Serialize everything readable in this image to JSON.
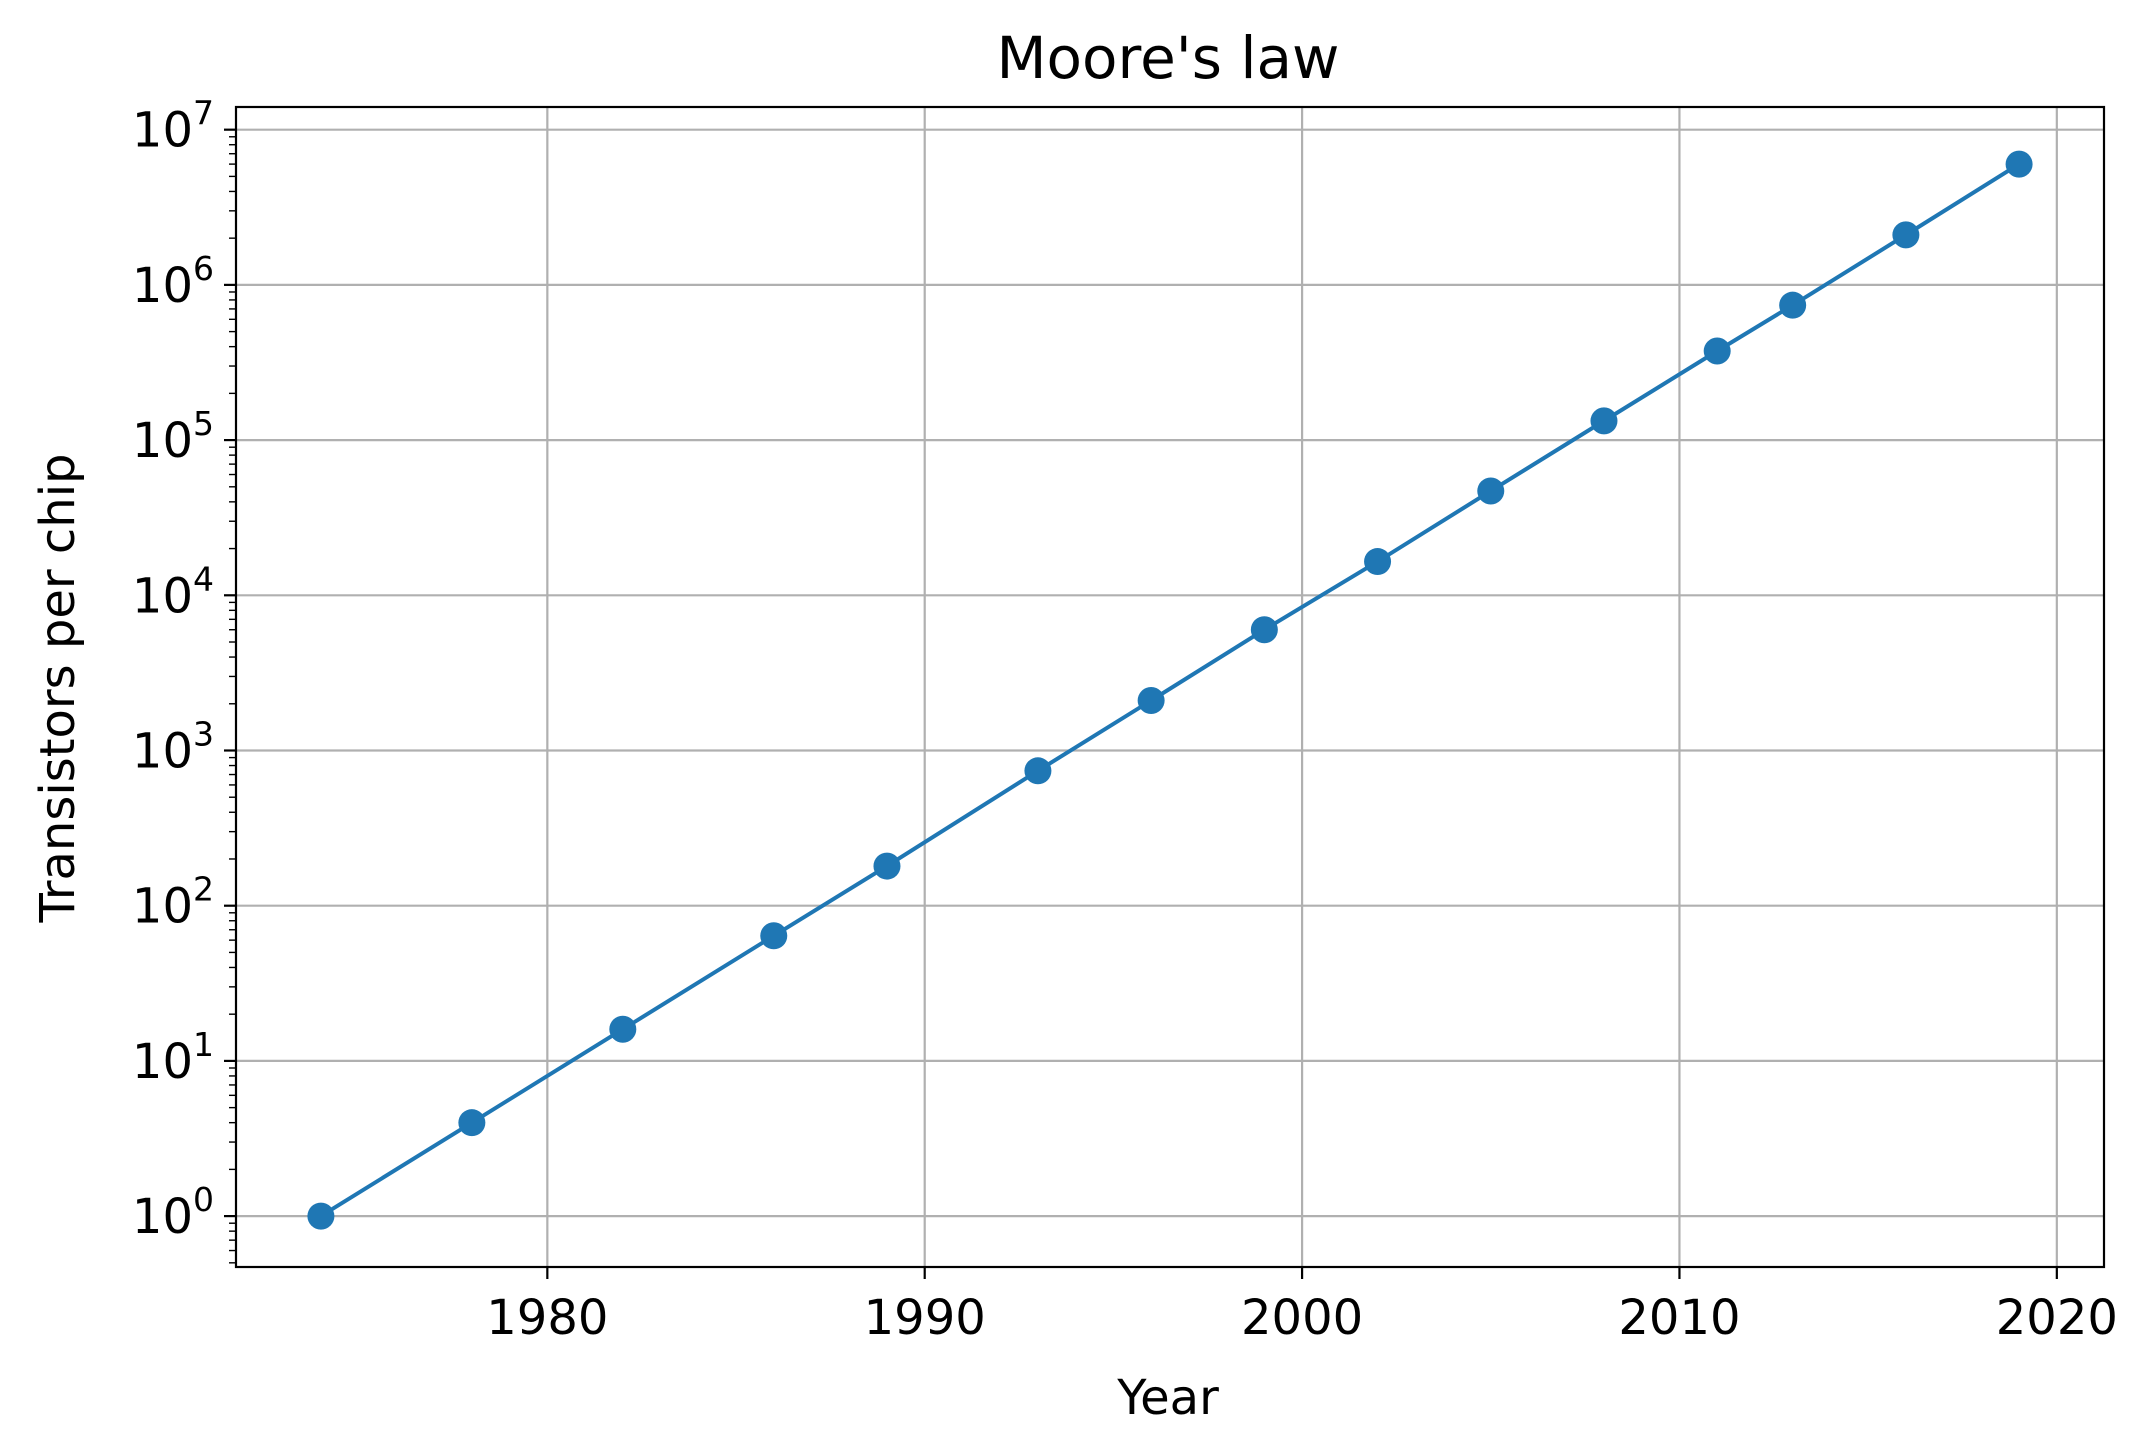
{
  "chart_data": {
    "type": "line",
    "title": "Moore's law",
    "xlabel": "Year",
    "ylabel": "Transistors per chip",
    "y_scale": "log",
    "xlim": [
      1971.75,
      2021.25
    ],
    "ylim": [
      0.47,
      14000000
    ],
    "grid": true,
    "x_ticks": [
      1980,
      1990,
      2000,
      2010,
      2020
    ],
    "x_tick_labels": [
      "1980",
      "1990",
      "2000",
      "2010",
      "2020"
    ],
    "y_ticks": [
      1,
      10,
      100,
      1000,
      10000,
      100000,
      1000000,
      10000000
    ],
    "y_tick_labels": [
      {
        "base": "10",
        "exp": "0"
      },
      {
        "base": "10",
        "exp": "1"
      },
      {
        "base": "10",
        "exp": "2"
      },
      {
        "base": "10",
        "exp": "3"
      },
      {
        "base": "10",
        "exp": "4"
      },
      {
        "base": "10",
        "exp": "5"
      },
      {
        "base": "10",
        "exp": "6"
      },
      {
        "base": "10",
        "exp": "7"
      }
    ],
    "series": [
      {
        "color": "#1f77b4",
        "marker": "circle",
        "x": [
          1974,
          1978,
          1982,
          1986,
          1989,
          1993,
          1996,
          1999,
          2002,
          2005,
          2008,
          2011,
          2013,
          2016,
          2019
        ],
        "y": [
          1,
          4,
          16,
          64,
          180,
          740,
          2100,
          6000,
          16500,
          47000,
          133000,
          375000,
          740000,
          2100000,
          6000000
        ]
      }
    ]
  }
}
